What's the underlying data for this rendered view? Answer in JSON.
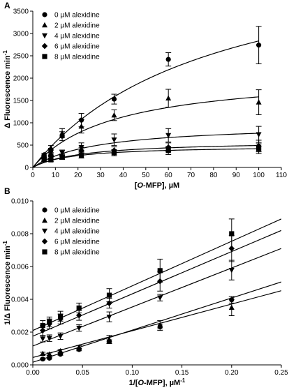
{
  "chart_data": [
    {
      "panel_label": "A",
      "type": "scatter",
      "xlabel_parts": [
        "[",
        "O",
        "-MFP], µM"
      ],
      "ylabel": "Δ Fluorescence min",
      "ylabel_sup": "-1",
      "xlim": [
        0,
        110
      ],
      "ylim": [
        0,
        3500
      ],
      "xticks": [
        0,
        10,
        20,
        30,
        40,
        50,
        60,
        70,
        80,
        90,
        100,
        110
      ],
      "yticks": [
        0,
        500,
        1000,
        1500,
        2000,
        2500,
        3000,
        3500
      ],
      "legend_position": "top-left",
      "fit": "michaelis-menten",
      "series": [
        {
          "name": "0 µM alexidine",
          "marker": "circle",
          "x": [
            5,
            8,
            13,
            21.5,
            36,
            60,
            100
          ],
          "y": [
            230,
            380,
            700,
            1060,
            1530,
            2420,
            2740
          ],
          "err": [
            40,
            50,
            100,
            150,
            110,
            150,
            420
          ],
          "fit_params": {
            "vmax": 5100,
            "km": 80
          }
        },
        {
          "name": "2 µM alexidine",
          "marker": "triangle-up",
          "x": [
            5,
            8,
            13,
            21.5,
            36,
            60,
            100
          ],
          "y": [
            180,
            440,
            770,
            920,
            1170,
            1550,
            1460
          ],
          "err": [
            40,
            50,
            100,
            150,
            120,
            200,
            280
          ],
          "fit_params": {
            "vmax": 2150,
            "km": 36
          }
        },
        {
          "name": "4 µM alexidine",
          "marker": "triangle-down",
          "x": [
            5,
            8,
            13,
            21.5,
            36,
            60,
            100
          ],
          "y": [
            180,
            220,
            330,
            450,
            620,
            720,
            740
          ],
          "err": [
            40,
            40,
            60,
            100,
            130,
            150,
            180
          ],
          "fit_params": {
            "vmax": 980,
            "km": 28
          }
        },
        {
          "name": "6 µM alexidine",
          "marker": "diamond",
          "x": [
            5,
            8,
            13,
            21.5,
            36,
            60,
            100
          ],
          "y": [
            280,
            280,
            250,
            380,
            380,
            450,
            480
          ],
          "err": [
            40,
            40,
            50,
            70,
            80,
            100,
            130
          ],
          "fit_params": {
            "vmax": 600,
            "km": 22
          }
        },
        {
          "name": "8 µM alexidine",
          "marker": "square",
          "x": [
            5,
            8,
            13,
            21.5,
            36,
            60,
            100
          ],
          "y": [
            170,
            170,
            230,
            270,
            330,
            380,
            420
          ],
          "err": [
            40,
            40,
            50,
            60,
            70,
            90,
            110
          ],
          "fit_params": {
            "vmax": 490,
            "km": 17
          }
        }
      ]
    },
    {
      "panel_label": "B",
      "type": "scatter",
      "xlabel_parts": [
        "1/[",
        "O",
        "-MFP], µM"
      ],
      "xlabel_sup": "-1",
      "ylabel": "1/Δ Fluorescence min",
      "ylabel_sup": "-1",
      "xlim": [
        0,
        0.25
      ],
      "ylim": [
        0,
        0.01
      ],
      "xticks": [
        0.0,
        0.05,
        0.1,
        0.15,
        0.2,
        0.25
      ],
      "xtick_labels": [
        "0.00",
        "0.05",
        "0.10",
        "0.15",
        "0.20",
        "0.25"
      ],
      "yticks": [
        0,
        0.002,
        0.004,
        0.006,
        0.008,
        0.01
      ],
      "ytick_labels": [
        "0.000",
        "0.002",
        "0.004",
        "0.006",
        "0.008",
        "0.010"
      ],
      "legend_position": "top-left",
      "fit": "linear",
      "series": [
        {
          "name": "0 µM alexidine",
          "marker": "circle",
          "x": [
            0.01,
            0.0167,
            0.0278,
            0.0465,
            0.0769,
            0.128,
            0.2
          ],
          "y": [
            0.00036,
            0.00041,
            0.00065,
            0.00094,
            0.00143,
            0.00234,
            0.00397
          ],
          "err": [
            5e-05,
            5e-05,
            6e-05,
            8e-05,
            0.0001,
            0.00015,
            0.0002
          ],
          "fit_line": {
            "intercept": 0.00016,
            "slope": 0.0196
          }
        },
        {
          "name": "2 µM alexidine",
          "marker": "triangle-up",
          "x": [
            0.01,
            0.0167,
            0.0278,
            0.0465,
            0.0769,
            0.128,
            0.2
          ],
          "y": [
            0.00069,
            0.00065,
            0.00085,
            0.00108,
            0.00155,
            0.0024,
            0.0035
          ],
          "err": [
            8e-05,
            8e-05,
            0.0001,
            0.0001,
            0.00025,
            0.0003,
            0.0005
          ],
          "fit_line": {
            "intercept": 0.00045,
            "slope": 0.0163
          }
        },
        {
          "name": "4 µM alexidine",
          "marker": "triangle-down",
          "x": [
            0.01,
            0.0167,
            0.0278,
            0.0465,
            0.0769,
            0.128,
            0.2
          ],
          "y": [
            0.0016,
            0.00163,
            0.00175,
            0.00225,
            0.00293,
            0.0041,
            0.00578
          ],
          "err": [
            0.0002,
            0.0002,
            0.0002,
            0.0002,
            0.0003,
            0.0002,
            0.0006
          ],
          "fit_line": {
            "intercept": 0.00115,
            "slope": 0.0238
          }
        },
        {
          "name": "6 µM alexidine",
          "marker": "diamond",
          "x": [
            0.01,
            0.0167,
            0.0278,
            0.0465,
            0.0769,
            0.128,
            0.2
          ],
          "y": [
            0.0021,
            0.0025,
            0.0028,
            0.00302,
            0.00376,
            0.0051,
            0.0071
          ],
          "err": [
            0.0003,
            0.0003,
            0.0003,
            0.0003,
            0.0003,
            0.0006,
            0.0008
          ],
          "fit_line": {
            "intercept": 0.00175,
            "slope": 0.0258
          }
        },
        {
          "name": "8 µM alexidine",
          "marker": "square",
          "x": [
            0.01,
            0.0167,
            0.0278,
            0.0465,
            0.0769,
            0.128,
            0.2
          ],
          "y": [
            0.0024,
            0.00262,
            0.00297,
            0.00347,
            0.00425,
            0.00575,
            0.008
          ],
          "err": [
            0.0003,
            0.0003,
            0.0003,
            0.0003,
            0.0004,
            0.0007,
            0.0009
          ],
          "fit_line": {
            "intercept": 0.0021,
            "slope": 0.0272
          }
        }
      ]
    }
  ]
}
